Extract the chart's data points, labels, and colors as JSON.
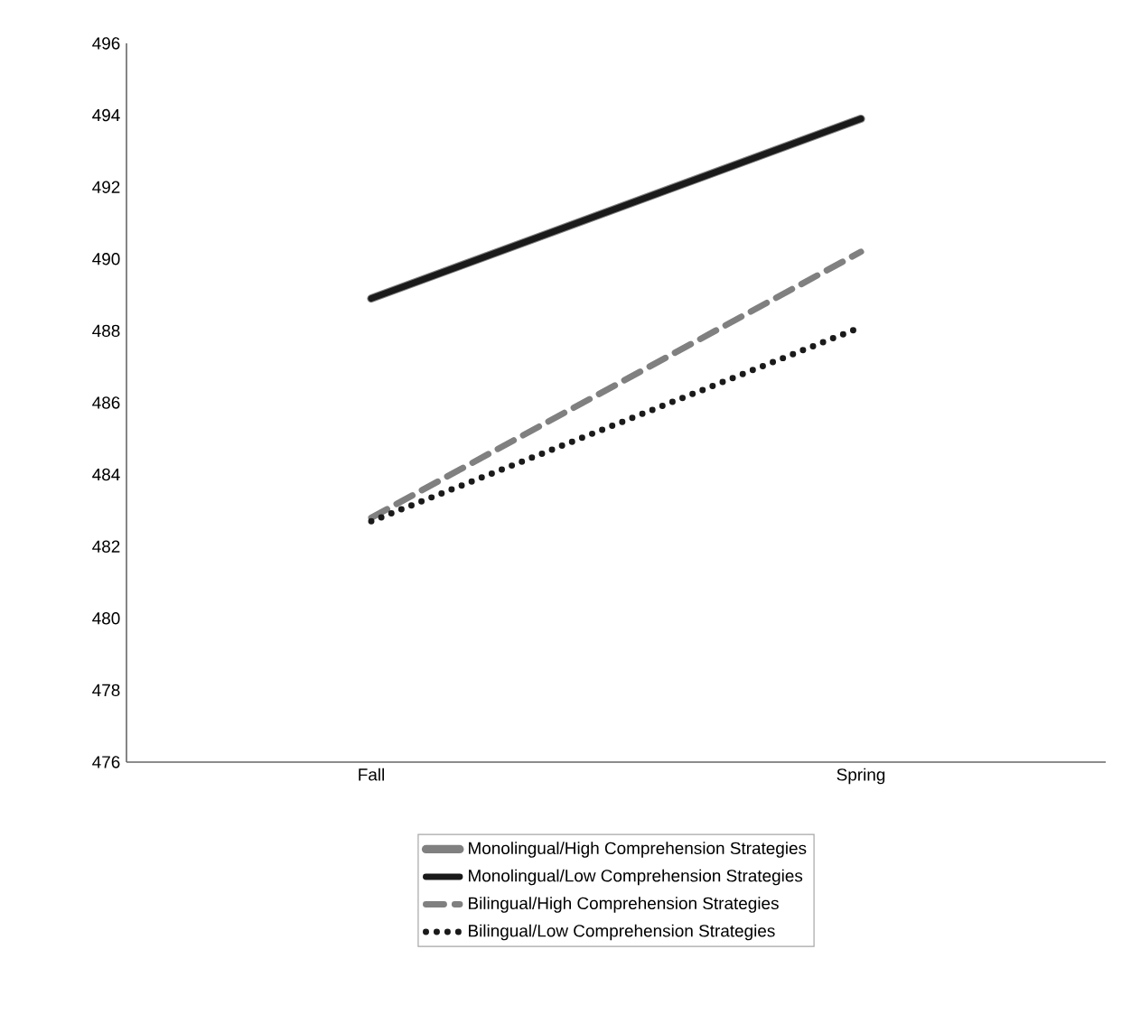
{
  "chart_data": {
    "type": "line",
    "categories": [
      "Fall",
      "Spring"
    ],
    "series": [
      {
        "name": "Monolingual/High Comprehension Strategies",
        "color": "#808080",
        "line_style": "solid",
        "values": [
          488.9,
          493.9
        ]
      },
      {
        "name": "Monolingual/Low Comprehension Strategies",
        "color": "#1a1a1a",
        "line_style": "solid",
        "values": [
          488.9,
          493.9
        ]
      },
      {
        "name": "Bilingual/High Comprehension Strategies",
        "color": "#808080",
        "line_style": "dashed",
        "values": [
          482.8,
          490.2
        ]
      },
      {
        "name": "Bilingual/Low Comprehension Strategies",
        "color": "#1a1a1a",
        "line_style": "dotted",
        "values": [
          482.7,
          488.1
        ]
      }
    ],
    "ylim": [
      476,
      496
    ],
    "yticks": [
      476,
      478,
      480,
      482,
      484,
      486,
      488,
      490,
      492,
      494,
      496
    ],
    "grid": false,
    "legend": "bottom",
    "marker": "none"
  }
}
